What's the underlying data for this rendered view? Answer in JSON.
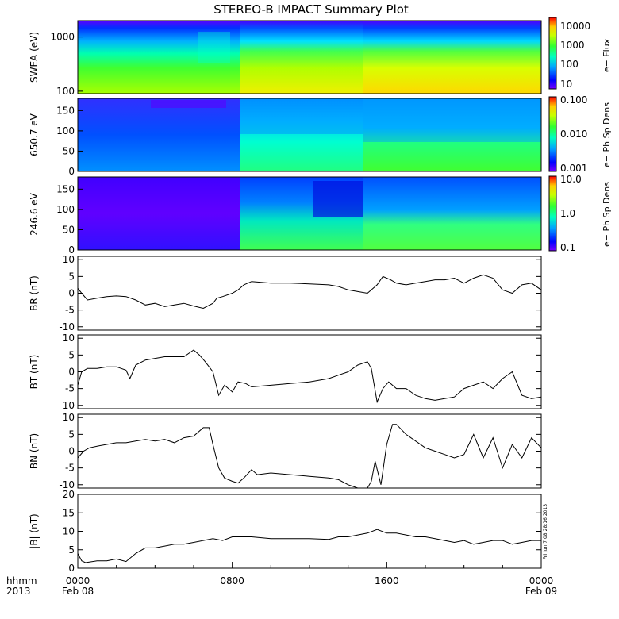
{
  "title": "STEREO-B IMPACT Summary Plot",
  "side_label": "Fri Jun  7 08:28:16 2013",
  "x_axis": {
    "row_labels": [
      "hhmm",
      "2013"
    ],
    "ticks": [
      {
        "hour": 0,
        "top": "0000",
        "bottom": "Feb 08"
      },
      {
        "hour": 8,
        "top": "0800",
        "bottom": ""
      },
      {
        "hour": 16,
        "top": "1600",
        "bottom": ""
      },
      {
        "hour": 24,
        "top": "0000",
        "bottom": "Feb 09"
      }
    ],
    "range_hours": [
      0,
      24
    ]
  },
  "spectrograms": [
    {
      "ylabel": "SWEA (eV)",
      "yscale": "log",
      "yrange": [
        90,
        2000
      ],
      "yticks": [
        "1000",
        "100"
      ],
      "yticks_values": [
        1000,
        100
      ],
      "colorbar_label": "e−  Flux",
      "colorbar_ticks": [
        "10000",
        "1000",
        "100",
        "10"
      ]
    },
    {
      "ylabel": "650.7 eV",
      "yscale": "linear",
      "yrange": [
        0,
        180
      ],
      "yticks": [
        "150",
        "100",
        "50",
        "0"
      ],
      "yticks_values": [
        150,
        100,
        50,
        0
      ],
      "colorbar_label": "e−  Ph Sp Dens",
      "colorbar_ticks": [
        "0.100",
        "0.010",
        "0.001"
      ]
    },
    {
      "ylabel": "246.6 eV",
      "yscale": "linear",
      "yrange": [
        0,
        180
      ],
      "yticks": [
        "150",
        "100",
        "50",
        "0"
      ],
      "yticks_values": [
        150,
        100,
        50,
        0
      ],
      "colorbar_label": "e−  Ph Sp Dens",
      "colorbar_ticks": [
        "10.0",
        "1.0",
        "0.1"
      ]
    }
  ],
  "chart_data": [
    {
      "type": "line",
      "ylabel": "BR (nT)",
      "ylim": [
        -11,
        11
      ],
      "yticks": [
        "10",
        "5",
        "0",
        "-5",
        "-10"
      ],
      "yticks_values": [
        10,
        5,
        0,
        -5,
        -10
      ],
      "x": [
        0,
        0.2,
        0.5,
        1,
        1.5,
        2,
        2.5,
        3,
        3.5,
        4,
        4.5,
        5,
        5.5,
        6,
        6.5,
        7,
        7.2,
        7.5,
        8,
        8.3,
        8.6,
        9,
        10,
        11,
        12,
        13,
        13.5,
        14,
        14.5,
        15,
        15.2,
        15.5,
        15.8,
        16.2,
        16.5,
        17,
        17.5,
        18,
        18.5,
        19,
        19.5,
        20,
        20.5,
        21,
        21.5,
        22,
        22.5,
        23,
        23.5,
        24
      ],
      "y": [
        1.5,
        0,
        -2,
        -1.5,
        -1,
        -0.8,
        -1,
        -2,
        -3.5,
        -3,
        -4,
        -3.5,
        -3,
        -3.8,
        -4.5,
        -3,
        -1.5,
        -1,
        0,
        1,
        2.5,
        3.5,
        3,
        3,
        2.8,
        2.5,
        2,
        1,
        0.5,
        0,
        1,
        2.5,
        5,
        4,
        3,
        2.5,
        3,
        3.5,
        4,
        4,
        4.5,
        3,
        4.5,
        5.5,
        4.5,
        1,
        0,
        2.5,
        3,
        1
      ]
    },
    {
      "type": "line",
      "ylabel": "BT (nT)",
      "ylim": [
        -11,
        11
      ],
      "yticks": [
        "10",
        "5",
        "0",
        "-5",
        "-10"
      ],
      "yticks_values": [
        10,
        5,
        0,
        -5,
        -10
      ],
      "x": [
        0,
        0.2,
        0.5,
        1,
        1.5,
        2,
        2.5,
        2.7,
        3,
        3.5,
        4,
        4.5,
        5,
        5.5,
        6,
        6.3,
        6.6,
        7,
        7.3,
        7.6,
        8,
        8.3,
        8.7,
        9,
        10,
        11,
        12,
        13,
        13.5,
        14,
        14.5,
        15,
        15.2,
        15.5,
        15.8,
        16.1,
        16.5,
        17,
        17.5,
        18,
        18.5,
        19,
        19.5,
        20,
        20.5,
        21,
        21.5,
        22,
        22.5,
        23,
        23.5,
        24
      ],
      "y": [
        -4,
        0,
        1,
        1,
        1.5,
        1.5,
        0.5,
        -2,
        2,
        3.5,
        4,
        4.5,
        4.5,
        4.5,
        6.5,
        5,
        3,
        0,
        -7,
        -4,
        -6,
        -3,
        -3.5,
        -4.5,
        -4,
        -3.5,
        -3,
        -2,
        -1,
        0,
        2,
        3,
        1,
        -9,
        -5,
        -3,
        -5,
        -5,
        -7,
        -8,
        -8.5,
        -8,
        -7.5,
        -5,
        -4,
        -3,
        -5,
        -2,
        0,
        -7,
        -8,
        -7.5
      ]
    },
    {
      "type": "line",
      "ylabel": "BN (nT)",
      "ylim": [
        -11,
        11
      ],
      "yticks": [
        "10",
        "5",
        "0",
        "-5",
        "-10"
      ],
      "yticks_values": [
        10,
        5,
        0,
        -5,
        -10
      ],
      "x": [
        0,
        0.3,
        0.6,
        1,
        1.5,
        2,
        2.5,
        3,
        3.5,
        4,
        4.5,
        5,
        5.5,
        6,
        6.5,
        6.8,
        7,
        7.3,
        7.6,
        8,
        8.3,
        8.6,
        9,
        9.3,
        10,
        11,
        12,
        13,
        13.5,
        14,
        14.5,
        15,
        15.2,
        15.4,
        15.7,
        16,
        16.3,
        16.5,
        17,
        17.5,
        18,
        18.5,
        19,
        19.5,
        20,
        20.5,
        21,
        21.5,
        22,
        22.5,
        23,
        23.5,
        24
      ],
      "y": [
        -2,
        0,
        1,
        1.5,
        2,
        2.5,
        2.5,
        3,
        3.5,
        3,
        3.5,
        2.5,
        4,
        4.5,
        7,
        7,
        2,
        -5,
        -8,
        -9,
        -9.5,
        -8,
        -5.5,
        -7,
        -6.5,
        -7,
        -7.5,
        -8,
        -8.5,
        -10,
        -11,
        -11,
        -9,
        -3,
        -10,
        2,
        8,
        8,
        5,
        3,
        1,
        0,
        -1,
        -2,
        -1,
        5,
        -2,
        4,
        -5,
        2,
        -2,
        4,
        1
      ]
    },
    {
      "type": "line",
      "ylabel": "|B| (nT)",
      "ylim": [
        0,
        20
      ],
      "yticks": [
        "20",
        "15",
        "10",
        "5",
        "0"
      ],
      "yticks_values": [
        20,
        15,
        10,
        5,
        0
      ],
      "x": [
        0,
        0.2,
        0.4,
        1,
        1.5,
        2,
        2.5,
        3,
        3.5,
        4,
        4.5,
        5,
        5.5,
        6,
        6.5,
        7,
        7.5,
        8,
        8.5,
        9,
        10,
        11,
        12,
        13,
        13.5,
        14,
        14.5,
        15,
        15.5,
        16,
        16.5,
        17,
        17.5,
        18,
        18.5,
        19,
        19.5,
        20,
        20.5,
        21,
        21.5,
        22,
        22.5,
        23,
        23.5,
        24
      ],
      "y": [
        4,
        2,
        1.5,
        2,
        2,
        2.5,
        1.8,
        4,
        5.5,
        5.5,
        6,
        6.5,
        6.5,
        7,
        7.5,
        8,
        7.5,
        8.5,
        8.5,
        8.5,
        8,
        8,
        8,
        7.8,
        8.5,
        8.5,
        9,
        9.5,
        10.5,
        9.5,
        9.5,
        9,
        8.5,
        8.5,
        8,
        7.5,
        7,
        7.5,
        6.5,
        7,
        7.5,
        7.5,
        6.5,
        7,
        7.5,
        7.5
      ]
    }
  ]
}
